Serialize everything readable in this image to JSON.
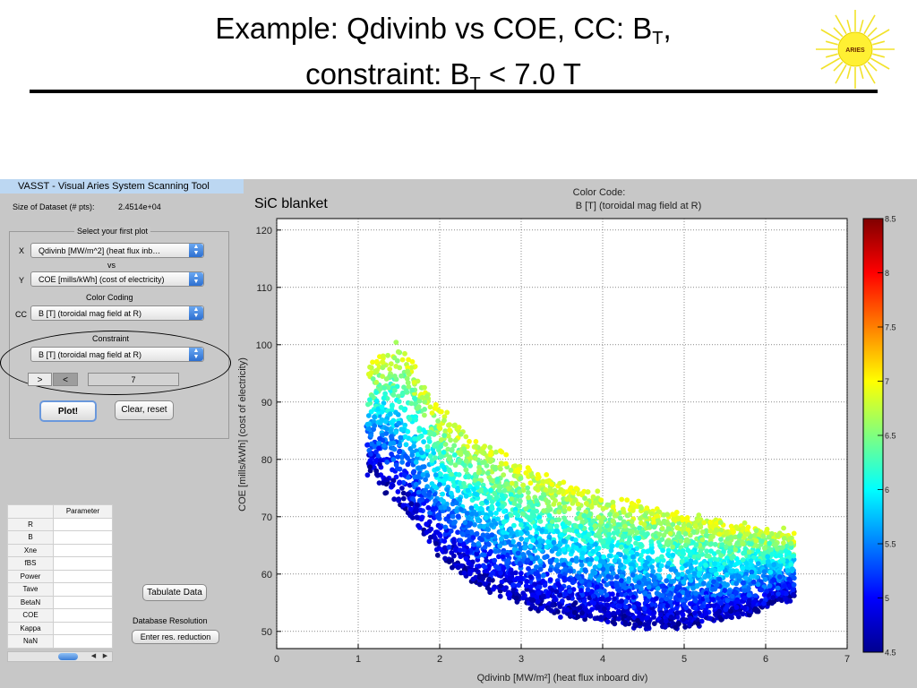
{
  "slide": {
    "title_line1_prefix": "Example: Qdivinb vs COE, CC: B",
    "title_line1_sub": "T",
    "title_line1_suffix": ",",
    "title_line2_prefix": "constraint: B",
    "title_line2_sub": "T",
    "title_line2_suffix": " < 7.0 T",
    "logo_text": "ARIES"
  },
  "app": {
    "window_title": "VASST - Visual Aries System Scanning Tool",
    "dataset_label": "Size of Dataset (# pts):",
    "dataset_value": "2.4514e+04",
    "panel_title": "Select your first plot",
    "x_label": "X",
    "x_select": "Qdivinb [MW/m^2] (heat flux inb…",
    "vs_label": "vs",
    "y_label": "Y",
    "y_select": "COE [mills/kWh] (cost of electricity)",
    "color_coding_label": "Color Coding",
    "cc_label": "CC",
    "cc_select": "B [T] (toroidal mag field at R)",
    "constraint_label": "Constraint",
    "constraint_select": "B [T] (toroidal mag field at R)",
    "gt_button": ">",
    "lt_button": "<",
    "constraint_value": "7",
    "plot_button": "Plot!",
    "clear_button": "Clear, reset",
    "table_header": "Parameter",
    "table_rows": [
      "R",
      "B",
      "Xne",
      "fBS",
      "Power",
      "Tave",
      "BetaN",
      "COE",
      "Kappa",
      "NaN"
    ],
    "tabulate_button": "Tabulate Data",
    "resolution_label": "Database Resolution",
    "reduction_button": "Enter res. reduction"
  },
  "chart_data": {
    "type": "scatter",
    "annotation": "SiC blanket",
    "colorbar_title_line1": "Color Code:",
    "colorbar_title_line2": "B [T] (toroidal mag field at R)",
    "xlabel": "Qdivinb [MW/m²] (heat flux inboard div)",
    "ylabel": "COE [mills/kWh] (cost of electricity)",
    "xlim": [
      0,
      7
    ],
    "ylim": [
      47,
      122
    ],
    "xticks": [
      "0",
      "1",
      "2",
      "3",
      "4",
      "5",
      "6",
      "7"
    ],
    "yticks": [
      "50",
      "60",
      "70",
      "80",
      "90",
      "100",
      "110",
      "120"
    ],
    "grid": true,
    "colorbar_range": [
      4.5,
      8.5
    ],
    "colorbar_ticks": [
      "4.5",
      "5",
      "5.5",
      "6",
      "6.5",
      "7",
      "7.5",
      "8",
      "8.5"
    ],
    "colormap": "jet",
    "constraint": "B_T < 7.0 T",
    "point_count_shown": "2.4514e+04",
    "envelope": {
      "x": [
        1.1,
        1.5,
        2.0,
        2.5,
        3.0,
        3.5,
        4.0,
        4.5,
        5.0,
        5.5,
        6.0,
        6.35
      ],
      "coe_upper": [
        96,
        101,
        89,
        83,
        79,
        76,
        74,
        72,
        70,
        69,
        68,
        67
      ],
      "coe_lower": [
        78,
        72,
        63,
        58,
        55,
        53,
        52,
        51,
        51,
        52,
        54,
        56
      ]
    }
  }
}
